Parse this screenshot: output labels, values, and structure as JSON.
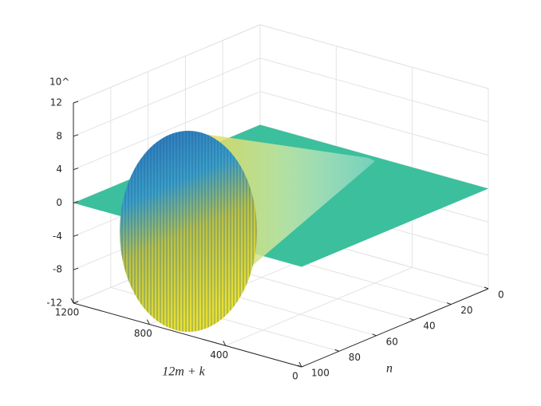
{
  "chart_data": {
    "type": "surface",
    "xlabel": "12m + k",
    "ylabel": "n",
    "zexponent_label": "10^",
    "xlim": [
      0,
      1200
    ],
    "xticks": [
      0,
      400,
      800,
      1200
    ],
    "ylim": [
      0,
      100
    ],
    "yticks": [
      0,
      20,
      40,
      60,
      80,
      100
    ],
    "zlim": [
      -12,
      12
    ],
    "zticks": [
      -12,
      -8,
      -4,
      0,
      4,
      8,
      12
    ],
    "grid": true,
    "plane_color": "#3cbf9c"
  }
}
